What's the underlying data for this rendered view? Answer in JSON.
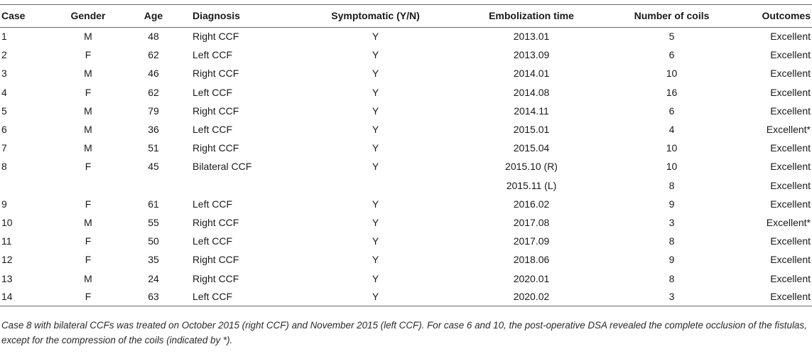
{
  "table": {
    "headers": {
      "case": "Case",
      "gender": "Gender",
      "age": "Age",
      "diagnosis": "Diagnosis",
      "symptomatic": "Symptomatic (Y/N)",
      "embolization": "Embolization time",
      "coils": "Number of coils",
      "outcomes": "Outcomes"
    },
    "rows": [
      {
        "case": "1",
        "gender": "M",
        "age": "48",
        "diagnosis": "Right CCF",
        "symptomatic": "Y",
        "embolization": "2013.01",
        "coils": "5",
        "outcomes": "Excellent"
      },
      {
        "case": "2",
        "gender": "F",
        "age": "62",
        "diagnosis": "Left CCF",
        "symptomatic": "Y",
        "embolization": "2013.09",
        "coils": "6",
        "outcomes": "Excellent"
      },
      {
        "case": "3",
        "gender": "M",
        "age": "46",
        "diagnosis": "Right CCF",
        "symptomatic": "Y",
        "embolization": "2014.01",
        "coils": "10",
        "outcomes": "Excellent"
      },
      {
        "case": "4",
        "gender": "F",
        "age": "62",
        "diagnosis": "Left CCF",
        "symptomatic": "Y",
        "embolization": "2014.08",
        "coils": "16",
        "outcomes": "Excellent"
      },
      {
        "case": "5",
        "gender": "M",
        "age": "79",
        "diagnosis": "Right CCF",
        "symptomatic": "Y",
        "embolization": "2014.11",
        "coils": "6",
        "outcomes": "Excellent"
      },
      {
        "case": "6",
        "gender": "M",
        "age": "36",
        "diagnosis": "Left CCF",
        "symptomatic": "Y",
        "embolization": "2015.01",
        "coils": "4",
        "outcomes": "Excellent*"
      },
      {
        "case": "7",
        "gender": "M",
        "age": "51",
        "diagnosis": "Right CCF",
        "symptomatic": "Y",
        "embolization": "2015.04",
        "coils": "10",
        "outcomes": "Excellent"
      },
      {
        "case": "8",
        "gender": "F",
        "age": "45",
        "diagnosis": "Bilateral CCF",
        "symptomatic": "Y",
        "embolization": "2015.10 (R)",
        "coils": "10",
        "outcomes": "Excellent"
      },
      {
        "case": "",
        "gender": "",
        "age": "",
        "diagnosis": "",
        "symptomatic": "",
        "embolization": "2015.11 (L)",
        "coils": "8",
        "outcomes": "Excellent"
      },
      {
        "case": "9",
        "gender": "F",
        "age": "61",
        "diagnosis": "Left CCF",
        "symptomatic": "Y",
        "embolization": "2016.02",
        "coils": "9",
        "outcomes": "Excellent"
      },
      {
        "case": "10",
        "gender": "M",
        "age": "55",
        "diagnosis": "Right CCF",
        "symptomatic": "Y",
        "embolization": "2017.08",
        "coils": "3",
        "outcomes": "Excellent*"
      },
      {
        "case": "11",
        "gender": "F",
        "age": "50",
        "diagnosis": "Left CCF",
        "symptomatic": "Y",
        "embolization": "2017.09",
        "coils": "8",
        "outcomes": "Excellent"
      },
      {
        "case": "12",
        "gender": "F",
        "age": "35",
        "diagnosis": "Right CCF",
        "symptomatic": "Y",
        "embolization": "2018.06",
        "coils": "9",
        "outcomes": "Excellent"
      },
      {
        "case": "13",
        "gender": "M",
        "age": "24",
        "diagnosis": "Right CCF",
        "symptomatic": "Y",
        "embolization": "2020.01",
        "coils": "8",
        "outcomes": "Excellent"
      },
      {
        "case": "14",
        "gender": "F",
        "age": "63",
        "diagnosis": "Left CCF",
        "symptomatic": "Y",
        "embolization": "2020.02",
        "coils": "3",
        "outcomes": "Excellent"
      }
    ]
  },
  "footnote": "Case 8 with bilateral CCFs was treated on October 2015 (right CCF) and November 2015 (left CCF). For case 6 and 10, the post-operative DSA revealed the complete occlusion of the fistulas, except for the compression of the coils (indicated by *)."
}
